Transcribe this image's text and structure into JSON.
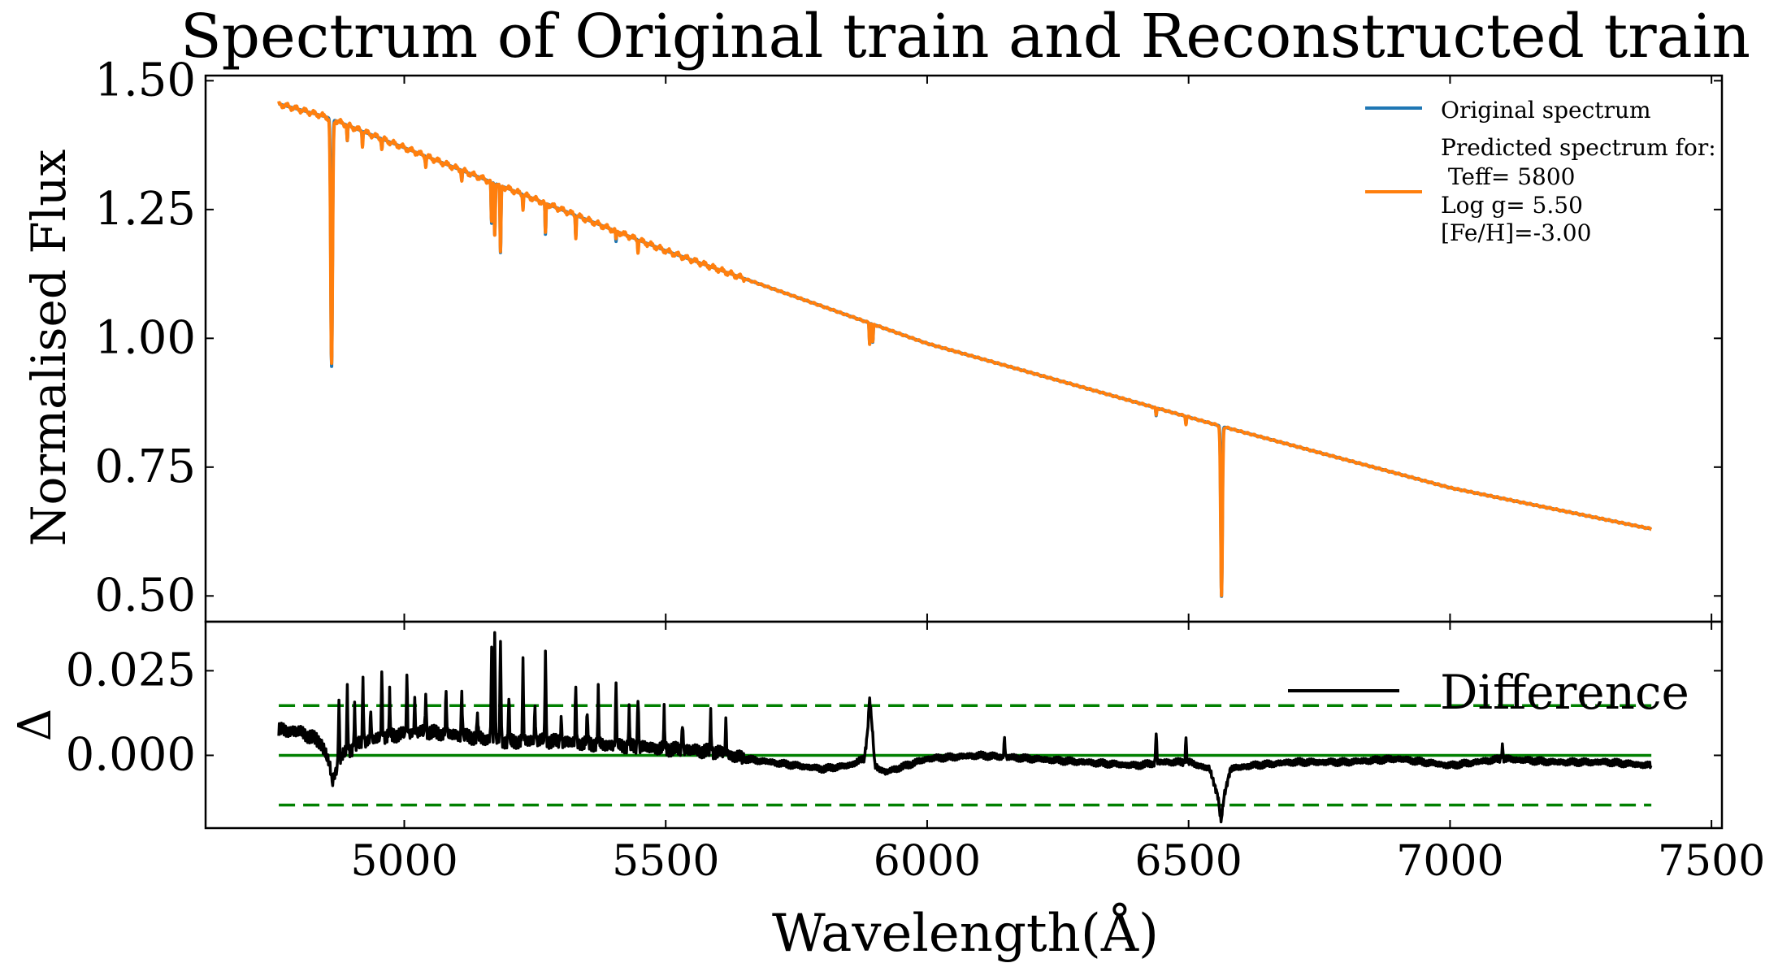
{
  "title": "Spectrum of Original train and Reconstructed train",
  "chart_data": [
    {
      "type": "line",
      "panel": "top",
      "ylabel": "Normalised Flux",
      "xlim": [
        4620,
        7520
      ],
      "ylim": [
        0.45,
        1.51
      ],
      "xticks": [
        5000,
        5500,
        6000,
        6500,
        7000,
        7500
      ],
      "yticks": [
        0.5,
        0.75,
        1.0,
        1.25,
        1.5
      ],
      "ytick_labels": [
        "0.50",
        "0.75",
        "1.00",
        "1.25",
        "1.50"
      ],
      "grid": false,
      "legend_position": "top-right",
      "legend": {
        "original_label": "Original spectrum",
        "predicted_lines": [
          "Predicted spectrum for:",
          " Teff= 5800",
          "Log g= 5.50",
          "[Fe/H]=-3.00"
        ]
      },
      "continuum": {
        "x": [
          4760,
          4850,
          5000,
          5500,
          6000,
          6560,
          7000,
          7385
        ],
        "y": [
          1.455,
          1.43,
          1.37,
          1.17,
          0.99,
          0.83,
          0.71,
          0.63
        ]
      },
      "absorption_lines": [
        {
          "x": 4861,
          "depth": 0.48,
          "width": 2.2
        },
        {
          "x": 6563,
          "depth": 0.33,
          "width": 2.0
        },
        {
          "x": 5167,
          "depth": 0.08,
          "width": 1.2
        },
        {
          "x": 5173,
          "depth": 0.1,
          "width": 1.2
        },
        {
          "x": 5184,
          "depth": 0.13,
          "width": 1.2
        },
        {
          "x": 5270,
          "depth": 0.06,
          "width": 1.0
        },
        {
          "x": 5328,
          "depth": 0.04,
          "width": 1.0
        },
        {
          "x": 5890,
          "depth": 0.04,
          "width": 1.0
        },
        {
          "x": 5896,
          "depth": 0.035,
          "width": 1.0
        },
        {
          "x": 4891,
          "depth": 0.03,
          "width": 1.0
        },
        {
          "x": 4920,
          "depth": 0.025,
          "width": 1.0
        },
        {
          "x": 4957,
          "depth": 0.02,
          "width": 1.0
        },
        {
          "x": 5041,
          "depth": 0.02,
          "width": 1.0
        },
        {
          "x": 5110,
          "depth": 0.02,
          "width": 1.0
        },
        {
          "x": 5227,
          "depth": 0.025,
          "width": 1.0
        },
        {
          "x": 5405,
          "depth": 0.02,
          "width": 1.0
        },
        {
          "x": 5447,
          "depth": 0.02,
          "width": 1.0
        },
        {
          "x": 6438,
          "depth": 0.015,
          "width": 1.0
        },
        {
          "x": 6495,
          "depth": 0.015,
          "width": 1.0
        }
      ],
      "series": [
        {
          "name": "Original spectrum",
          "color": "#1f77b4"
        },
        {
          "name": "Predicted spectrum",
          "color": "#ff7f0e"
        }
      ]
    },
    {
      "type": "line",
      "panel": "bottom",
      "ylabel": "Δ",
      "xlabel": "Wavelength(Å)",
      "xlim": [
        4620,
        7520
      ],
      "ylim": [
        -0.0215,
        0.0395
      ],
      "xticks": [
        5000,
        5500,
        6000,
        6500,
        7000,
        7500
      ],
      "yticks": [
        0.0,
        0.025
      ],
      "ytick_labels": [
        "0.000",
        "0.025"
      ],
      "legend_position": "top-right",
      "legend": {
        "label": "Difference"
      },
      "reference_lines": {
        "zero": 0.0,
        "upper": 0.0147,
        "lower": -0.0147,
        "color": "#008000"
      },
      "series": [
        {
          "name": "Difference",
          "color": "#000000",
          "x": [
            4760,
            4800,
            4840,
            4858,
            4862,
            4880,
            4920,
            4980,
            5040,
            5100,
            5150,
            5200,
            5250,
            5300,
            5400,
            5500,
            5600,
            5650,
            5700,
            5750,
            5800,
            5850,
            5880,
            5886,
            5890,
            5895,
            5900,
            5920,
            6000,
            6100,
            6200,
            6300,
            6400,
            6450,
            6500,
            6540,
            6556,
            6562,
            6568,
            6580,
            6620,
            6700,
            6800,
            6900,
            7000,
            7100,
            7200,
            7300,
            7385
          ],
          "y": [
            0.0075,
            0.007,
            0.004,
            -0.003,
            -0.008,
            0.0,
            0.004,
            0.006,
            0.007,
            0.006,
            0.005,
            0.004,
            0.0045,
            0.004,
            0.003,
            0.002,
            0.001,
            -0.001,
            -0.002,
            -0.003,
            -0.004,
            -0.003,
            -0.001,
            0.007,
            0.017,
            0.008,
            -0.003,
            -0.005,
            -0.001,
            0.0,
            -0.001,
            -0.002,
            -0.003,
            -0.002,
            -0.002,
            -0.004,
            -0.012,
            -0.0195,
            -0.012,
            -0.004,
            -0.003,
            -0.002,
            -0.002,
            -0.001,
            -0.003,
            -0.001,
            -0.002,
            -0.002,
            -0.003
          ]
        }
      ],
      "spikes": [
        {
          "x": 4875,
          "y": 0.016
        },
        {
          "x": 4891,
          "y": 0.019
        },
        {
          "x": 4905,
          "y": 0.014
        },
        {
          "x": 4921,
          "y": 0.022
        },
        {
          "x": 4936,
          "y": 0.013
        },
        {
          "x": 4957,
          "y": 0.024
        },
        {
          "x": 4972,
          "y": 0.018
        },
        {
          "x": 5005,
          "y": 0.023
        },
        {
          "x": 5020,
          "y": 0.016
        },
        {
          "x": 5041,
          "y": 0.018
        },
        {
          "x": 5080,
          "y": 0.019
        },
        {
          "x": 5110,
          "y": 0.019
        },
        {
          "x": 5140,
          "y": 0.013
        },
        {
          "x": 5167,
          "y": 0.032
        },
        {
          "x": 5173,
          "y": 0.037
        },
        {
          "x": 5184,
          "y": 0.035
        },
        {
          "x": 5200,
          "y": 0.018
        },
        {
          "x": 5227,
          "y": 0.027
        },
        {
          "x": 5250,
          "y": 0.014
        },
        {
          "x": 5270,
          "y": 0.031
        },
        {
          "x": 5300,
          "y": 0.011
        },
        {
          "x": 5328,
          "y": 0.021
        },
        {
          "x": 5350,
          "y": 0.013
        },
        {
          "x": 5371,
          "y": 0.019
        },
        {
          "x": 5405,
          "y": 0.021
        },
        {
          "x": 5430,
          "y": 0.013
        },
        {
          "x": 5447,
          "y": 0.018
        },
        {
          "x": 5497,
          "y": 0.013
        },
        {
          "x": 5532,
          "y": 0.01
        },
        {
          "x": 5586,
          "y": 0.012
        },
        {
          "x": 5615,
          "y": 0.01
        },
        {
          "x": 6148,
          "y": 0.005
        },
        {
          "x": 6438,
          "y": 0.007
        },
        {
          "x": 6495,
          "y": 0.005
        },
        {
          "x": 7100,
          "y": 0.003
        }
      ]
    }
  ]
}
